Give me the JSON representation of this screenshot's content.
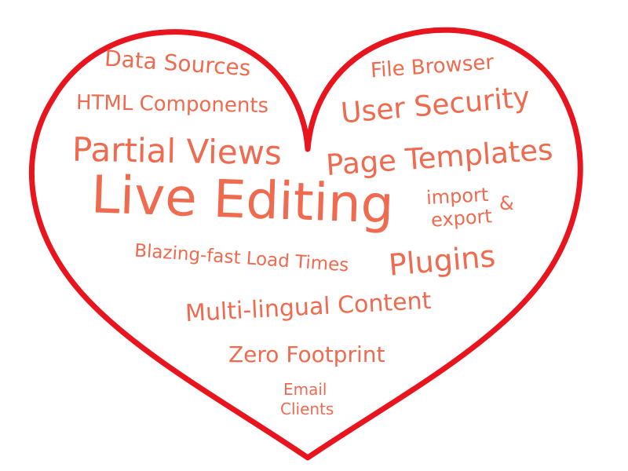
{
  "heart": {
    "stroke_color": "#e8141e"
  },
  "text_color": "#ef6a4f",
  "words": {
    "data_sources": "Data Sources",
    "file_browser": "File Browser",
    "html_components": "HTML Components",
    "user_security": "User Security",
    "partial_views": "Partial Views",
    "page_templates": "Page Templates",
    "live_editing": "Live Editing",
    "import_text": "import",
    "ampersand": "&",
    "export_text": "export",
    "blazing_fast": "Blazing-fast Load Times",
    "plugins": "Plugins",
    "multi_lingual": "Multi-lingual Content",
    "zero_footprint": "Zero Footprint",
    "email_text": "Email",
    "clients_text": "Clients"
  }
}
